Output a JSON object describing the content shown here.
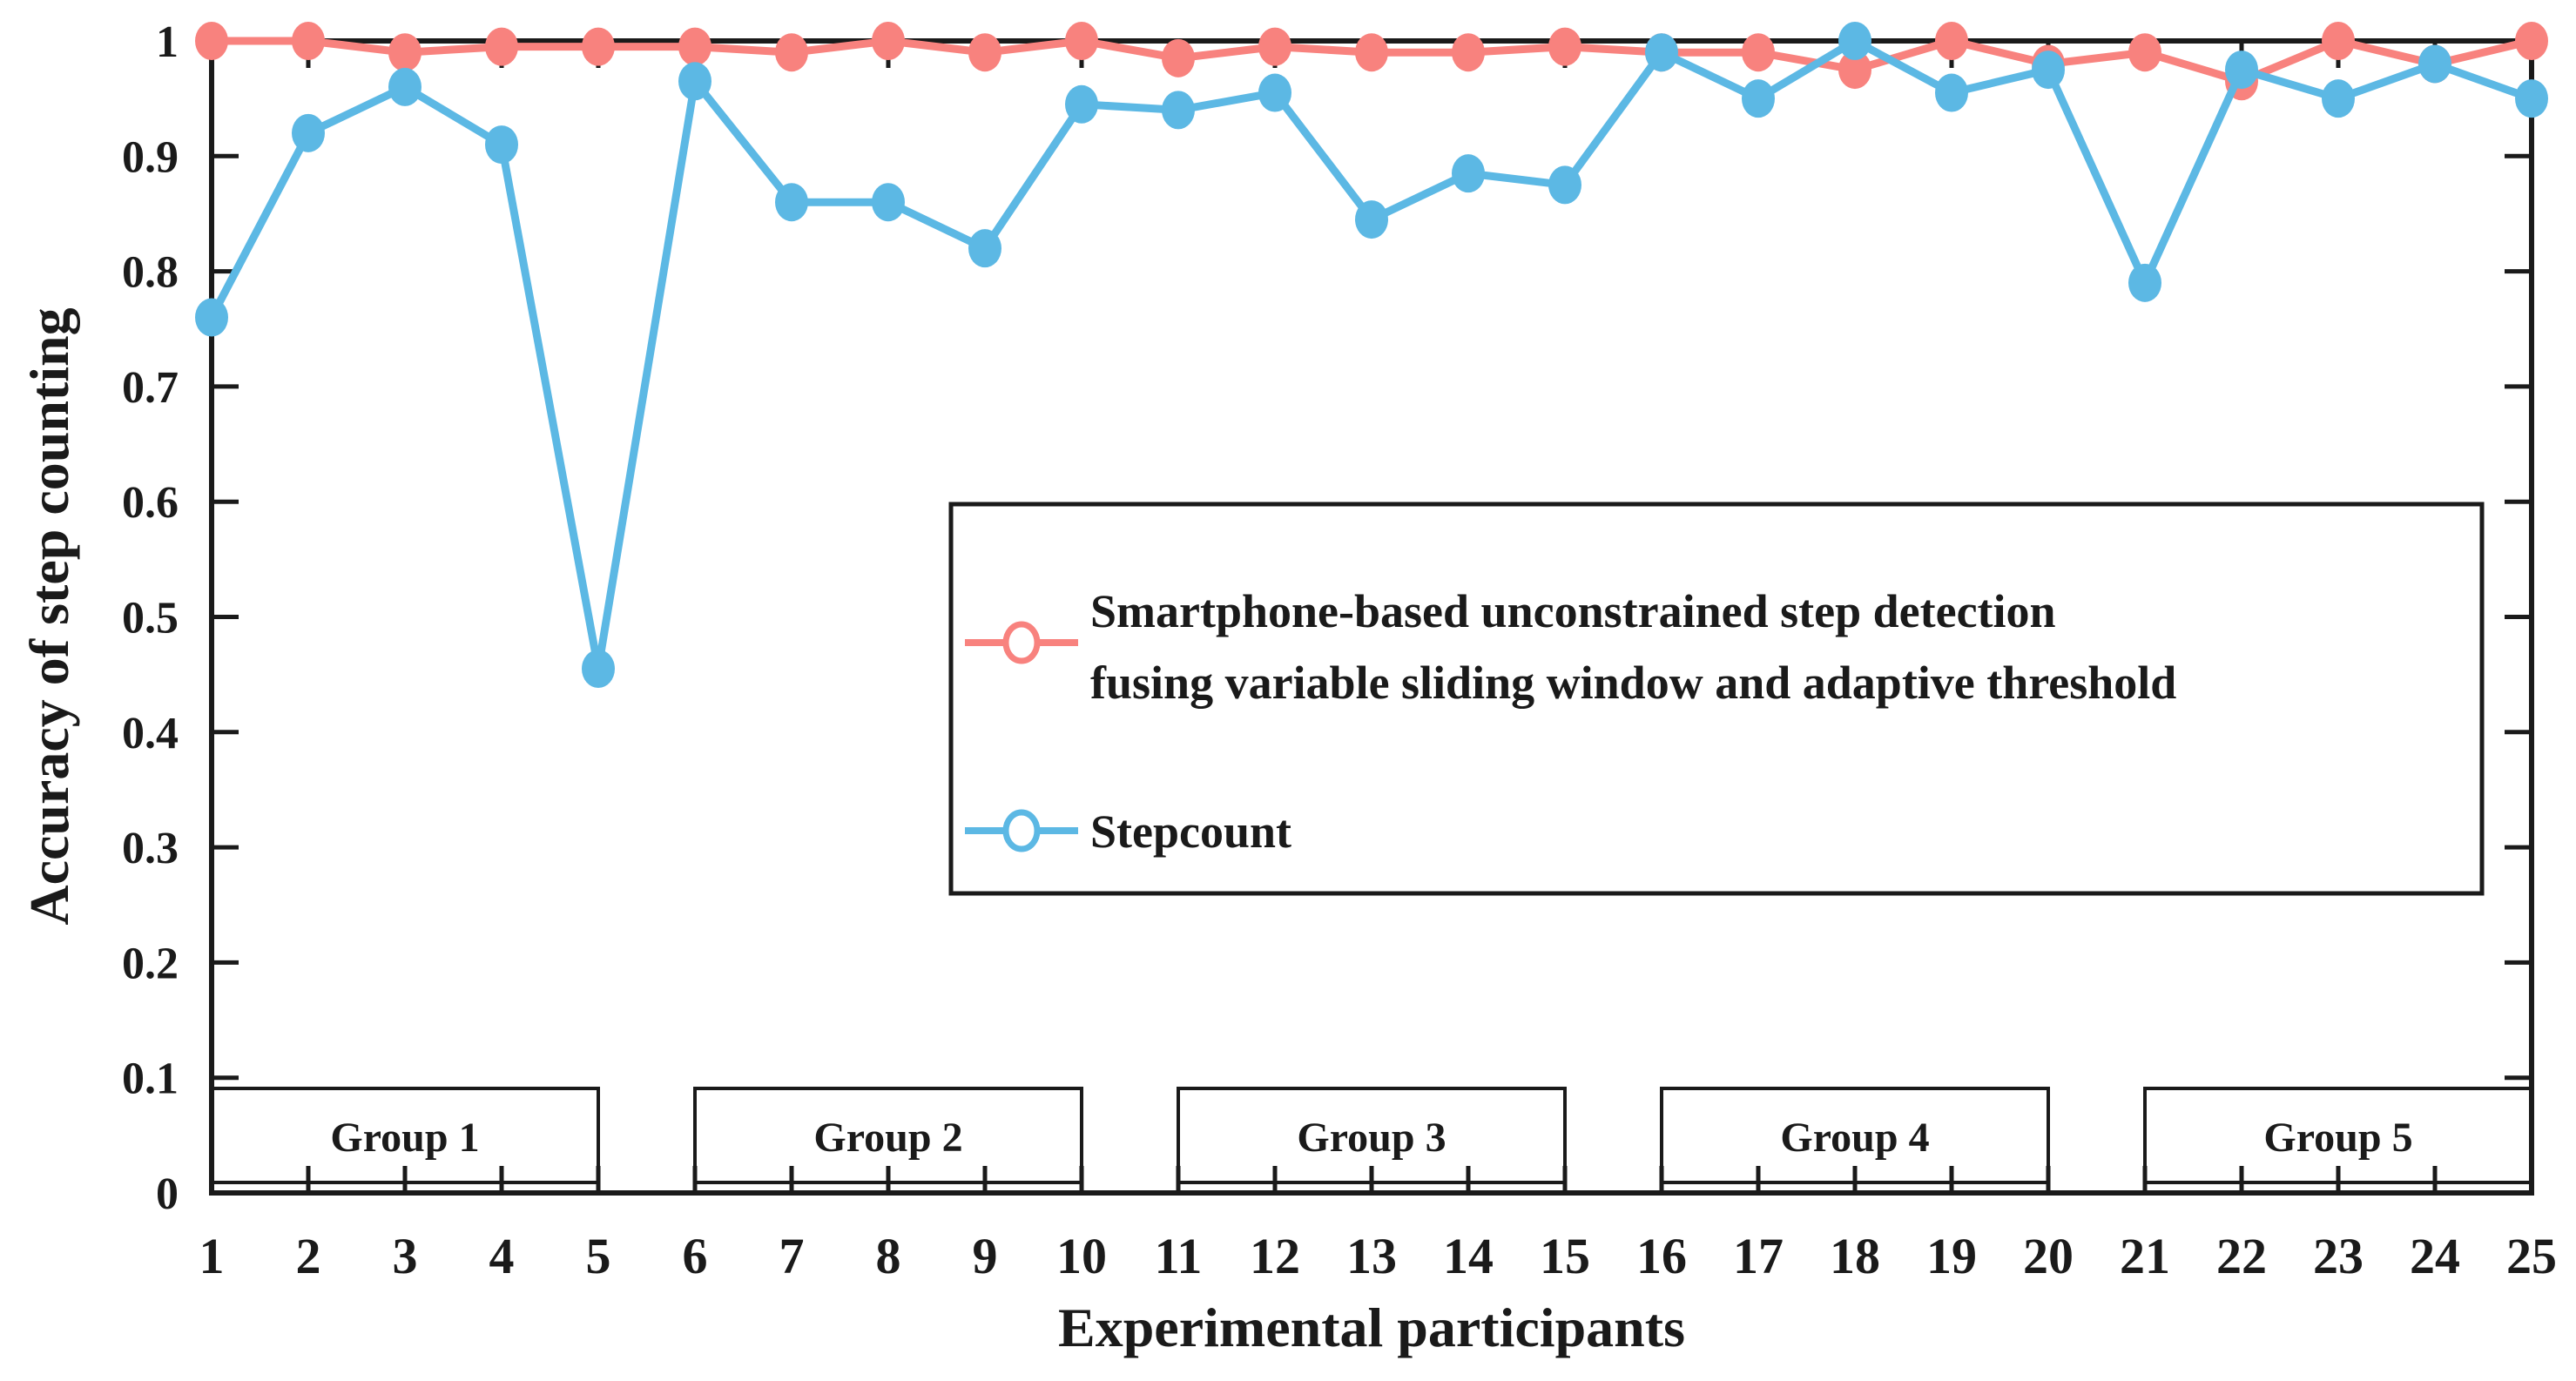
{
  "figure": {
    "background": "#ffffff",
    "axis_color": "#1a1a1a"
  },
  "chart_data": {
    "type": "line",
    "title": "",
    "xlabel": "Experimental participants",
    "ylabel": "Accuracy of step counting",
    "xlim": [
      1,
      25
    ],
    "ylim": [
      0,
      1
    ],
    "grid": false,
    "legend_position": "inside-center-right-box",
    "x": [
      1,
      2,
      3,
      4,
      5,
      6,
      7,
      8,
      9,
      10,
      11,
      12,
      13,
      14,
      15,
      16,
      17,
      18,
      19,
      20,
      21,
      22,
      23,
      24,
      25
    ],
    "yticks": [
      0,
      0.1,
      0.2,
      0.3,
      0.4,
      0.5,
      0.6,
      0.7,
      0.8,
      0.9,
      1
    ],
    "ytick_labels": [
      "0",
      "0.1",
      "0.2",
      "0.3",
      "0.4",
      "0.5",
      "0.6",
      "0.7",
      "0.8",
      "0.9",
      "1"
    ],
    "series": [
      {
        "name": "Smartphone-based unconstrained step detection fusing variable sliding window and adaptive threshold",
        "legend_lines": [
          "Smartphone-based unconstrained step detection",
          "fusing variable sliding window and adaptive threshold"
        ],
        "color": "#F8827E",
        "marker": "filled-circle",
        "legend_marker": "open-circle-on-line",
        "values": [
          1.0,
          1.0,
          0.99,
          0.995,
          0.995,
          0.995,
          0.99,
          1.0,
          0.99,
          1.0,
          0.985,
          0.995,
          0.99,
          0.99,
          0.995,
          0.99,
          0.99,
          0.975,
          1.0,
          0.98,
          0.99,
          0.965,
          1.0,
          0.98,
          1.0
        ]
      },
      {
        "name": "Stepcount",
        "legend_lines": [
          "Stepcount"
        ],
        "color": "#5CB8E4",
        "marker": "filled-circle",
        "legend_marker": "open-circle-on-line",
        "values": [
          0.76,
          0.92,
          0.96,
          0.91,
          0.455,
          0.965,
          0.86,
          0.86,
          0.82,
          0.945,
          0.94,
          0.955,
          0.845,
          0.885,
          0.875,
          0.99,
          0.95,
          1.0,
          0.955,
          0.975,
          0.79,
          0.975,
          0.95,
          0.98,
          0.95
        ]
      }
    ],
    "group_boxes": [
      {
        "label": "Group 1",
        "from": 1,
        "to": 5
      },
      {
        "label": "Group 2",
        "from": 6,
        "to": 10
      },
      {
        "label": "Group 3",
        "from": 11,
        "to": 15
      },
      {
        "label": "Group 4",
        "from": 16,
        "to": 20
      },
      {
        "label": "Group 5",
        "from": 21,
        "to": 25
      }
    ]
  }
}
